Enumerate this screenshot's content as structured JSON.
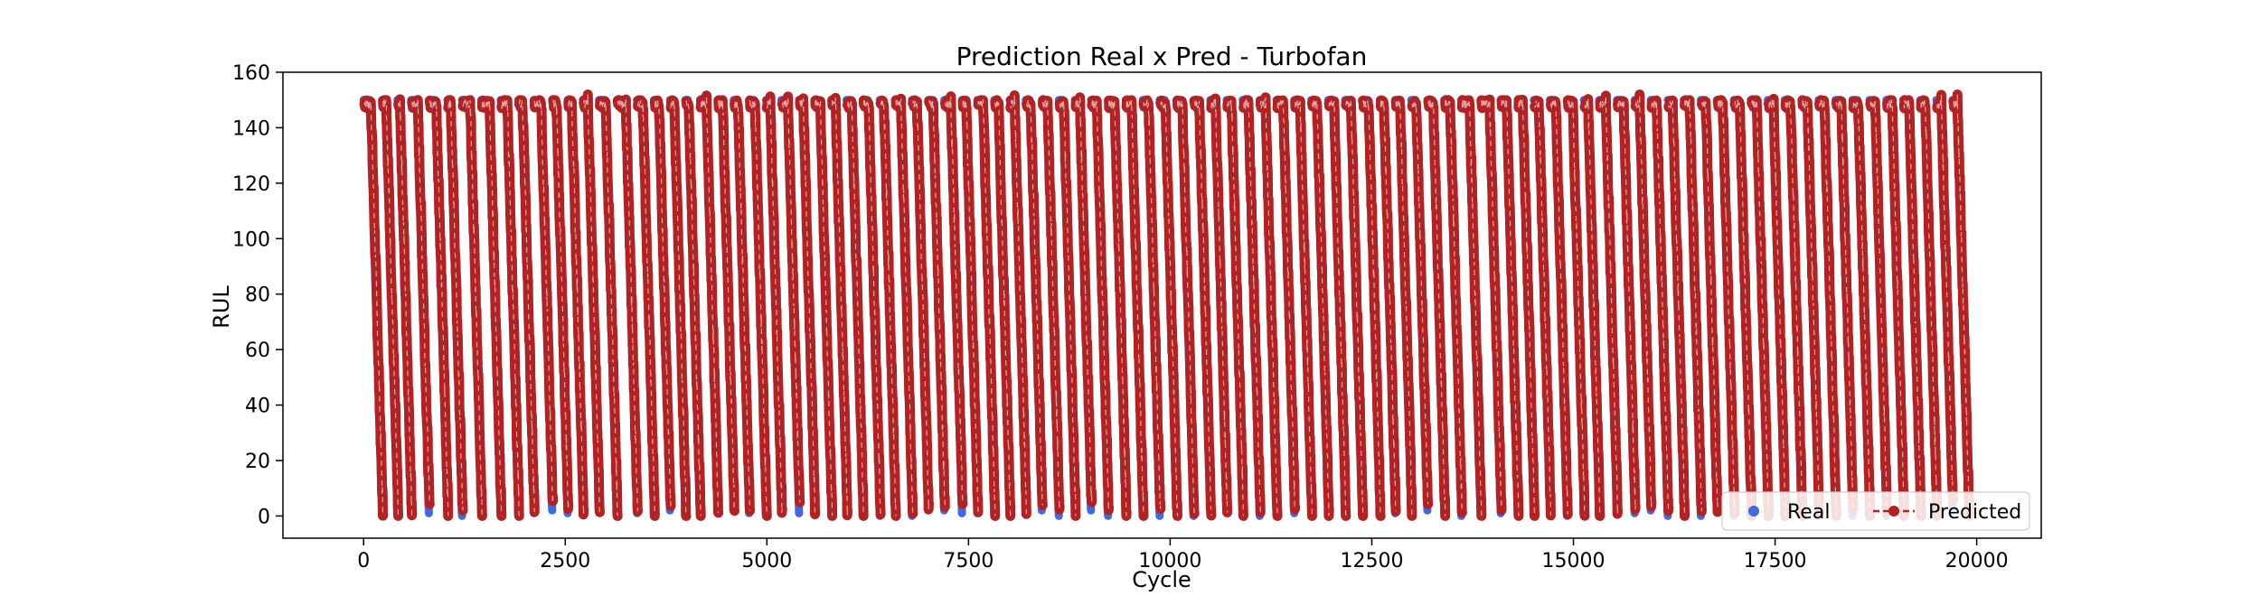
{
  "chart_data": {
    "type": "line",
    "title": "Prediction Real x Pred - Turbofan",
    "xlabel": "Cycle",
    "ylabel": "RUL",
    "xlim": [
      -1000,
      20800
    ],
    "ylim": [
      -8,
      160
    ],
    "xticks": [
      0,
      2500,
      5000,
      7500,
      10000,
      12500,
      15000,
      17500,
      20000
    ],
    "yticks": [
      0,
      20,
      40,
      60,
      80,
      100,
      120,
      140,
      160
    ],
    "grid": false,
    "legend_position": "lower-right",
    "real_cap": 150,
    "series": [
      {
        "name": "Real",
        "color": "#4169e1",
        "marker": "circle",
        "line": "none"
      },
      {
        "name": "Predicted",
        "color": "#b22222",
        "marker": "circle",
        "line": "dashed"
      }
    ],
    "engine_end_cycles": [
      230,
      420,
      590,
      810,
      1040,
      1220,
      1460,
      1700,
      1920,
      2110,
      2340,
      2530,
      2720,
      2920,
      3140,
      3390,
      3600,
      3800,
      3990,
      4170,
      4390,
      4590,
      4780,
      4990,
      5180,
      5400,
      5590,
      5800,
      5990,
      6190,
      6400,
      6590,
      6800,
      7000,
      7200,
      7420,
      7610,
      7820,
      8010,
      8210,
      8410,
      8620,
      8820,
      9020,
      9230,
      9450,
      9660,
      9870,
      10080,
      10290,
      10500,
      10700,
      10900,
      11110,
      11320,
      11540,
      11750,
      11960,
      12170,
      12380,
      12600,
      12790,
      12990,
      13190,
      13400,
      13610,
      13850,
      14100,
      14310,
      14510,
      14710,
      14920,
      15130,
      15320,
      15540,
      15760,
      15960,
      16170,
      16370,
      16580,
      16780,
      16990,
      17200,
      17410,
      17620,
      17830,
      18040,
      18250,
      18460,
      18670,
      18880,
      19090,
      19300,
      19500,
      19700,
      19900
    ]
  }
}
